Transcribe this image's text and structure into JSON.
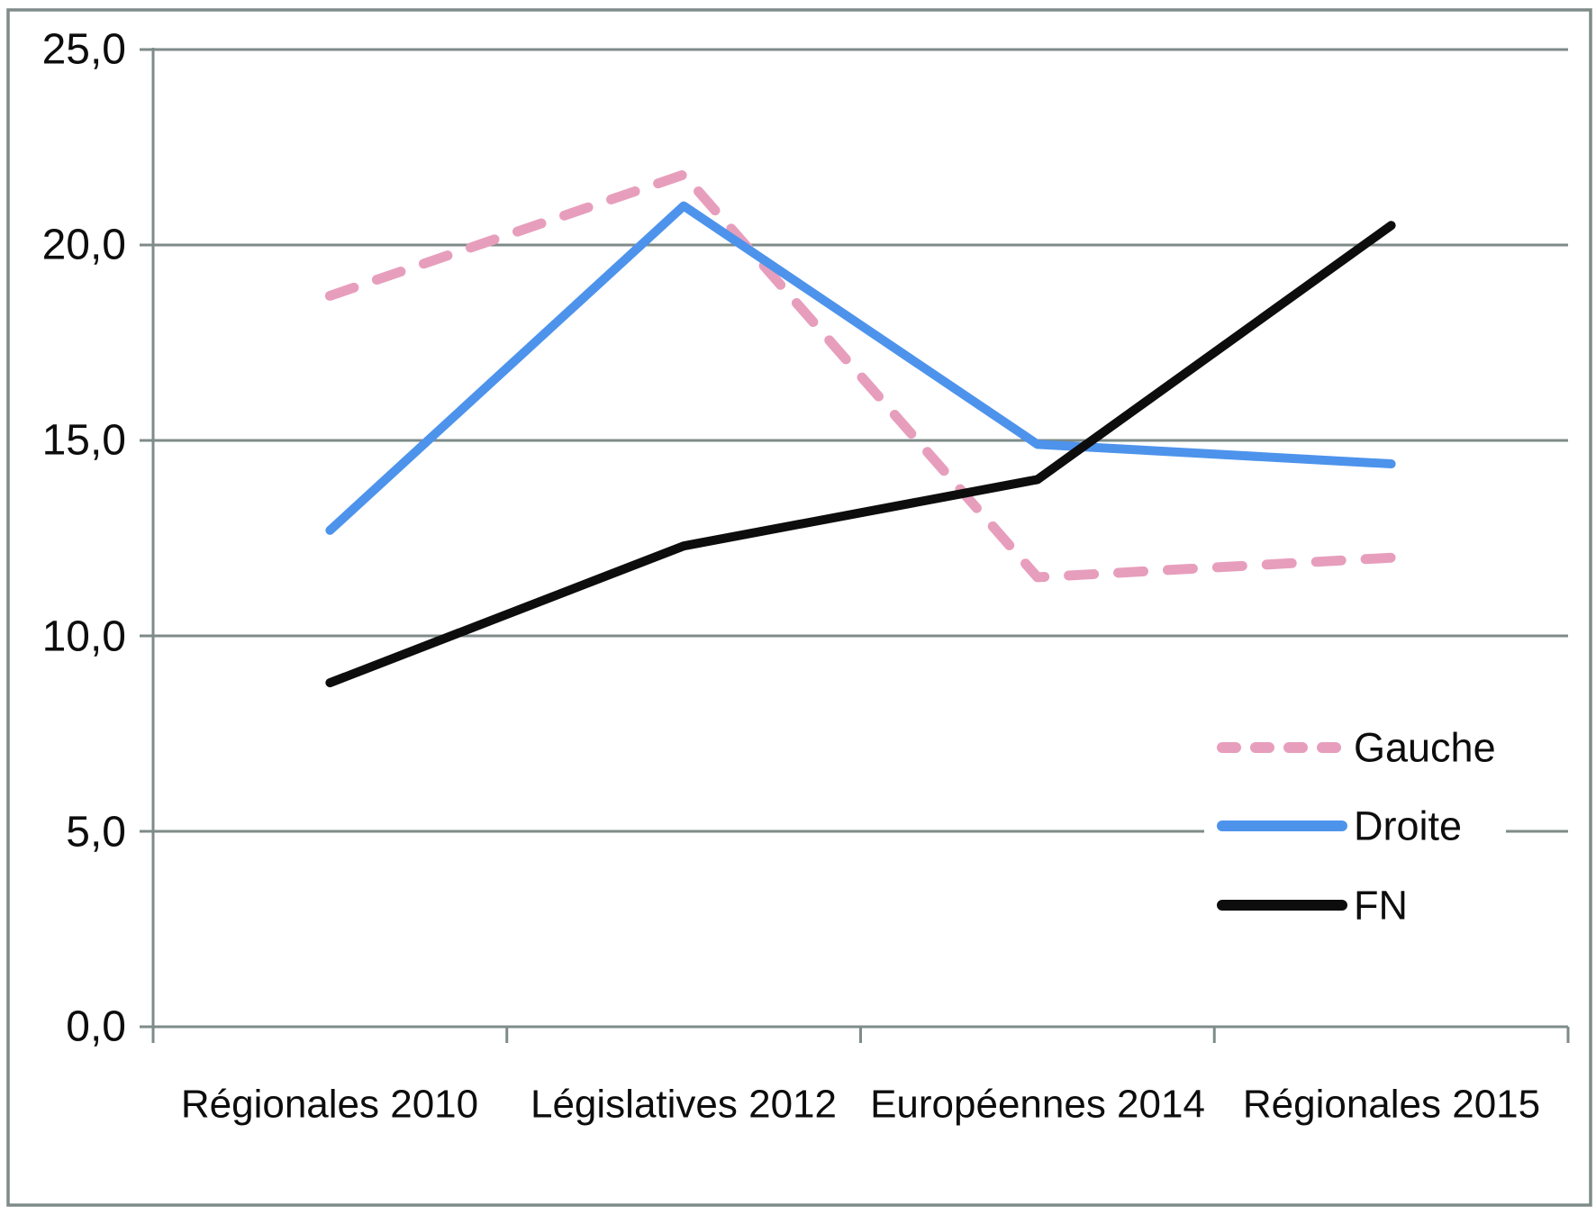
{
  "chart_data": {
    "type": "line",
    "title": "",
    "categories": [
      "Régionales 2010",
      "Législatives 2012",
      "Européennes 2014",
      "Régionales 2015"
    ],
    "series": [
      {
        "name": "Gauche",
        "values": [
          18.7,
          21.8,
          11.5,
          12.0
        ],
        "color": "#e79ebc",
        "line_style": "dashed"
      },
      {
        "name": "Droite",
        "values": [
          12.7,
          21.0,
          14.9,
          14.4
        ],
        "color": "#4d93ec",
        "line_style": "solid"
      },
      {
        "name": "FN",
        "values": [
          8.8,
          12.3,
          14.0,
          20.5
        ],
        "color": "#0d0d0d",
        "line_style": "solid"
      }
    ],
    "ylim": [
      0,
      25
    ],
    "y_tick_values": [
      25,
      20,
      15,
      10,
      5,
      0
    ],
    "y_ticks": [
      "25,0",
      "20,0",
      "15,0",
      "10,0",
      "5,0",
      "0,0"
    ],
    "decimal_separator": ",",
    "grid": true,
    "gridline_color": "#7e8b89",
    "axis_color": "#7e8b89",
    "border_color": "#7e8b89",
    "background_color": "#ffffff",
    "legend_position": "middle-right",
    "legend": [
      "Gauche",
      "Droite",
      "FN"
    ]
  }
}
